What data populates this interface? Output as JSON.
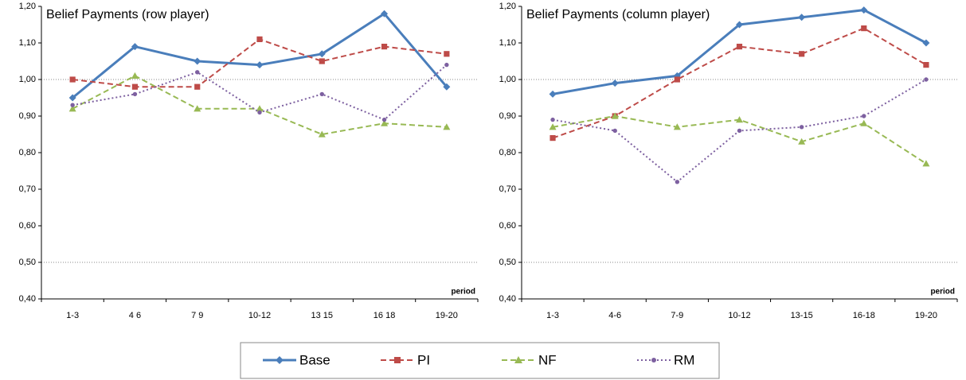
{
  "chart_data": [
    {
      "type": "line",
      "title": "Belief Payments (row player)",
      "xlabel": "period",
      "categories": [
        "1-3",
        "4 6",
        "7 9",
        "10-12",
        "13 15",
        "16 18",
        "19-20"
      ],
      "ylim": [
        0.4,
        1.2
      ],
      "yticks": [
        {
          "value": 0.4,
          "label": "0,40"
        },
        {
          "value": 0.5,
          "label": "0,50"
        },
        {
          "value": 0.6,
          "label": "0,60"
        },
        {
          "value": 0.7,
          "label": "0,70"
        },
        {
          "value": 0.8,
          "label": "0,80"
        },
        {
          "value": 0.9,
          "label": "0,90"
        },
        {
          "value": 1.0,
          "label": "1,00"
        },
        {
          "value": 1.1,
          "label": "1,10"
        },
        {
          "value": 1.2,
          "label": "1,20"
        }
      ],
      "reference_lines": [
        0.5,
        1.0
      ],
      "series": [
        {
          "name": "Base",
          "color": "#4a7ebb",
          "line_style": "solid",
          "marker": "diamond",
          "values": [
            0.95,
            1.09,
            1.05,
            1.04,
            1.07,
            1.18,
            0.98
          ]
        },
        {
          "name": "PI",
          "color": "#be4b48",
          "line_style": "dashed",
          "marker": "square",
          "values": [
            1.0,
            0.98,
            0.98,
            1.11,
            1.05,
            1.09,
            1.07
          ]
        },
        {
          "name": "NF",
          "color": "#98b954",
          "line_style": "dashed",
          "marker": "triangle",
          "values": [
            0.92,
            1.01,
            0.92,
            0.92,
            0.85,
            0.88,
            0.87
          ]
        },
        {
          "name": "RM",
          "color": "#7d60a0",
          "line_style": "dotted",
          "marker": "circle",
          "values": [
            0.93,
            0.96,
            1.02,
            0.91,
            0.96,
            0.89,
            1.04
          ]
        }
      ]
    },
    {
      "type": "line",
      "title": "Belief Payments (column player)",
      "xlabel": "period",
      "categories": [
        "1-3",
        "4-6",
        "7-9",
        "10-12",
        "13-15",
        "16-18",
        "19-20"
      ],
      "ylim": [
        0.4,
        1.2
      ],
      "yticks": [
        {
          "value": 0.4,
          "label": "0,40"
        },
        {
          "value": 0.5,
          "label": "0,50"
        },
        {
          "value": 0.6,
          "label": "0,60"
        },
        {
          "value": 0.7,
          "label": "0,70"
        },
        {
          "value": 0.8,
          "label": "0,80"
        },
        {
          "value": 0.9,
          "label": "0,90"
        },
        {
          "value": 1.0,
          "label": "1,00"
        },
        {
          "value": 1.1,
          "label": "1,10"
        },
        {
          "value": 1.2,
          "label": "1,20"
        }
      ],
      "reference_lines": [
        0.5,
        1.0
      ],
      "series": [
        {
          "name": "Base",
          "color": "#4a7ebb",
          "line_style": "solid",
          "marker": "diamond",
          "values": [
            0.96,
            0.99,
            1.01,
            1.15,
            1.17,
            1.19,
            1.1
          ]
        },
        {
          "name": "PI",
          "color": "#be4b48",
          "line_style": "dashed",
          "marker": "square",
          "values": [
            0.84,
            0.9,
            1.0,
            1.09,
            1.07,
            1.14,
            1.04
          ]
        },
        {
          "name": "NF",
          "color": "#98b954",
          "line_style": "dashed",
          "marker": "triangle",
          "values": [
            0.87,
            0.9,
            0.87,
            0.89,
            0.83,
            0.88,
            0.77
          ]
        },
        {
          "name": "RM",
          "color": "#7d60a0",
          "line_style": "dotted",
          "marker": "circle",
          "values": [
            0.89,
            0.86,
            0.72,
            0.86,
            0.87,
            0.9,
            1.0
          ]
        }
      ]
    }
  ]
}
